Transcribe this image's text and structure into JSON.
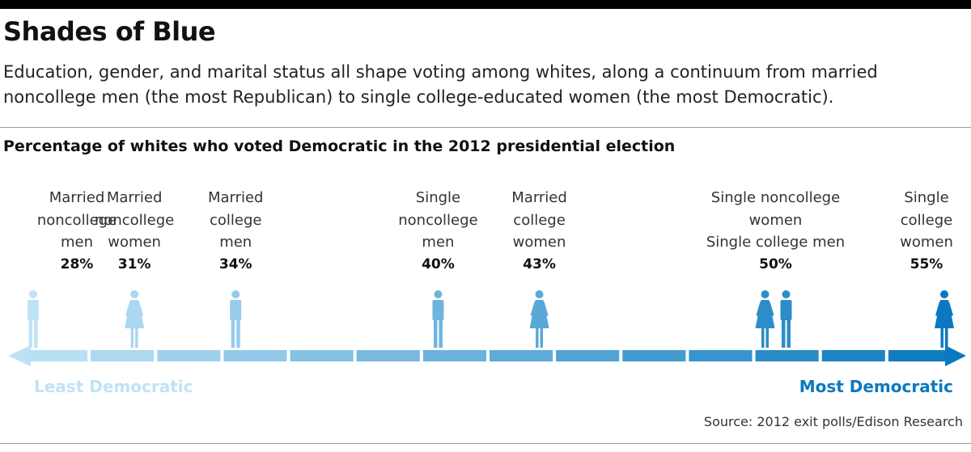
{
  "title": "Shades of Blue",
  "subtitle": "Education, gender, and marital status all shape voting among whites, along a continuum from married noncollege men (the most Republican) to single college-educated women (the most Democratic).",
  "chart_title": "Percentage of whites who voted Democratic in the 2012 presidential election",
  "source": "Source: 2012 exit polls/Edison Research",
  "colors": {
    "least": "#bfe3f6",
    "most": "#0a79bf",
    "text_least": "#bfe3f6",
    "text_most": "#0a79bf"
  },
  "chart_data": {
    "type": "scatter",
    "title": "Percentage of whites who voted Democratic in the 2012 presidential election",
    "xlim": [
      28,
      55
    ],
    "x_low_label": "Least Democratic",
    "x_high_label": "Most Democratic",
    "points": [
      {
        "label_lines": [
          "Married",
          "noncollege",
          "men"
        ],
        "value": 28,
        "value_label": "28%",
        "figures": [
          "man"
        ]
      },
      {
        "label_lines": [
          "Married",
          "noncollege",
          "women"
        ],
        "value": 31,
        "value_label": "31%",
        "figures": [
          "woman"
        ]
      },
      {
        "label_lines": [
          "Married",
          "college",
          "men"
        ],
        "value": 34,
        "value_label": "34%",
        "figures": [
          "man"
        ]
      },
      {
        "label_lines": [
          "Single",
          "noncollege",
          "men"
        ],
        "value": 40,
        "value_label": "40%",
        "figures": [
          "man"
        ]
      },
      {
        "label_lines": [
          "Married",
          "college",
          "women"
        ],
        "value": 43,
        "value_label": "43%",
        "figures": [
          "woman"
        ]
      },
      {
        "label_lines": [
          "Single noncollege",
          "women",
          "Single college men"
        ],
        "value": 50,
        "value_label": "50%",
        "figures": [
          "woman",
          "man"
        ]
      },
      {
        "label_lines": [
          "Single",
          "college",
          "women"
        ],
        "value": 55,
        "value_label": "55%",
        "figures": [
          "woman"
        ]
      }
    ]
  }
}
